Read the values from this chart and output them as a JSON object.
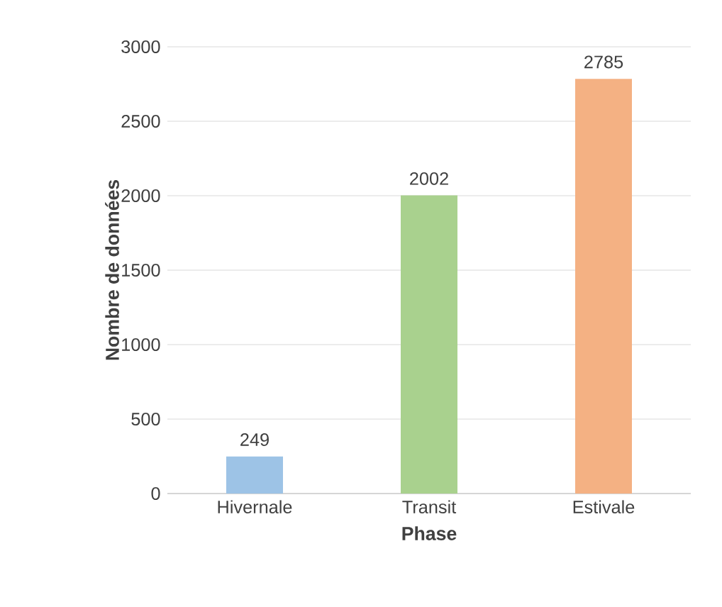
{
  "chart_data": {
    "type": "bar",
    "xlabel": "Phase",
    "ylabel": "Nombre de données",
    "categories": [
      "Hivernale",
      "Transit",
      "Estivale"
    ],
    "values": [
      249,
      2002,
      2785
    ],
    "colors": [
      "#9dc3e6",
      "#a9d18e",
      "#f4b183"
    ],
    "ylim": [
      0,
      3000
    ],
    "yticks": [
      0,
      500,
      1000,
      1500,
      2000,
      2500,
      3000
    ],
    "grid": "y",
    "data_labels": true
  }
}
